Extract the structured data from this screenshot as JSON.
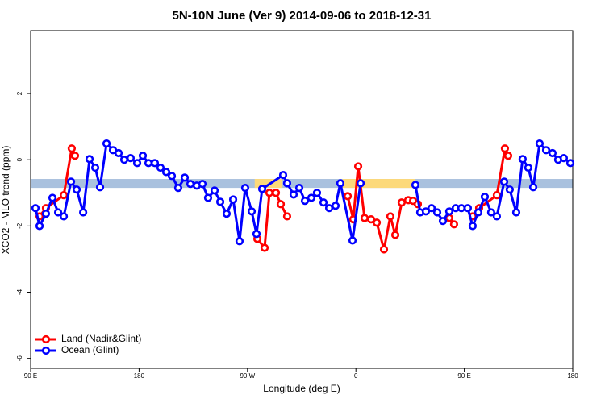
{
  "chart_data": {
    "type": "line",
    "title": "5N-10N June (Ver 9)   2014-09-06 to 2018-12-31",
    "x_label": "Longitude (deg E)",
    "y_label": "XCO2 - MLO trend (ppm)",
    "xlim": [
      90,
      540
    ],
    "xticks": [
      {
        "value": 90,
        "label": "90 E"
      },
      {
        "value": 180,
        "label": "180"
      },
      {
        "value": 270,
        "label": "90 W"
      },
      {
        "value": 360,
        "label": "0"
      },
      {
        "value": 450,
        "label": "90 E"
      },
      {
        "value": 540,
        "label": "180"
      }
    ],
    "ylim": [
      -6.3,
      3.9
    ],
    "yticks": [
      -6,
      -4,
      -2,
      0,
      2
    ],
    "band": {
      "ymin": -0.85,
      "ymax": -0.58,
      "color": "#a9c1de"
    },
    "band_highlights": {
      "color": "#fcd97a",
      "ranges": [
        [
          276,
          299
        ],
        [
          349,
          409
        ]
      ]
    },
    "legend": "bottom-left",
    "series": [
      {
        "name": "Land (Nadir&Glint)",
        "color": "#ff0000",
        "x": [
          97.4,
          102.7,
          117.5,
          124.1,
          126.8,
          200,
          278.2,
          284.2,
          288.2,
          293.6,
          297.6,
          302.9,
          330,
          353.2,
          357.8,
          361.9,
          367.2,
          372.6,
          377.3,
          383.3,
          388.6,
          392.7,
          398.0,
          403.4,
          407.4,
          411.4,
          420,
          437.5,
          441.5,
          450,
          456.9,
          462.3,
          477.0,
          483.7,
          486.4
        ],
        "values": [
          -1.71,
          -1.46,
          -1.07,
          0.34,
          0.12,
          null,
          -2.39,
          -2.66,
          -1.0,
          -1.0,
          -1.34,
          -1.71,
          null,
          -1.1,
          -1.8,
          -0.2,
          -1.76,
          -1.8,
          -1.9,
          -2.71,
          -1.71,
          -2.27,
          -1.29,
          -1.22,
          -1.24,
          -1.34,
          null,
          -1.76,
          -1.95,
          null,
          -1.71,
          -1.46,
          -1.07,
          0.34,
          0.12
        ]
      },
      {
        "name": "Ocean (Glint)",
        "color": "#0000ff",
        "x": [
          94.0,
          97.4,
          102.7,
          108.1,
          112.8,
          117.5,
          123.5,
          128.2,
          133.6,
          138.9,
          143.6,
          147.6,
          153.0,
          158.3,
          163.0,
          167.7,
          173.0,
          178.4,
          183.1,
          187.8,
          193.1,
          197.8,
          202.5,
          207.2,
          212.5,
          217.9,
          222.6,
          227.9,
          232.6,
          237.3,
          242.7,
          247.4,
          252.7,
          258.1,
          263.4,
          268.1,
          273.5,
          277.5,
          282.2,
          299.6,
          302.9,
          308.3,
          313.0,
          317.7,
          323.0,
          327.7,
          333.1,
          337.8,
          343.1,
          347.1,
          357.2,
          363.9,
          390,
          409.4,
          413.4,
          418.1,
          422.8,
          427.5,
          432.2,
          437.5,
          442.9,
          447.6,
          452.9,
          456.9,
          461.6,
          467.0,
          472.3,
          477.0,
          483.1,
          487.7,
          493.1,
          498.4,
          503.1,
          507.2,
          512.5,
          517.9,
          523.2,
          527.9,
          532.6,
          538.0
        ],
        "values": [
          -1.46,
          -2.0,
          -1.63,
          -1.15,
          -1.59,
          -1.71,
          -0.66,
          -0.9,
          -1.59,
          0.02,
          -0.24,
          -0.83,
          0.49,
          0.29,
          0.2,
          0.0,
          0.05,
          -0.1,
          0.12,
          -0.1,
          -0.1,
          -0.24,
          -0.37,
          -0.49,
          -0.85,
          -0.54,
          -0.73,
          -0.78,
          -0.73,
          -1.15,
          -0.93,
          -1.27,
          -1.63,
          -1.2,
          -2.46,
          -0.85,
          -1.56,
          -2.24,
          -0.88,
          -0.46,
          -0.71,
          -1.05,
          -0.85,
          -1.24,
          -1.15,
          -1.0,
          -1.29,
          -1.46,
          -1.39,
          -0.71,
          -2.44,
          -0.71,
          null,
          -0.76,
          -1.59,
          -1.56,
          -1.46,
          -1.59,
          -1.85,
          -1.56,
          -1.46,
          -1.46,
          -1.46,
          -2.0,
          -1.59,
          -1.12,
          -1.59,
          -1.71,
          -0.66,
          -0.9,
          -1.59,
          0.02,
          -0.24,
          -0.83,
          0.49,
          0.29,
          0.2,
          0.0,
          0.05,
          -0.1
        ]
      }
    ]
  }
}
